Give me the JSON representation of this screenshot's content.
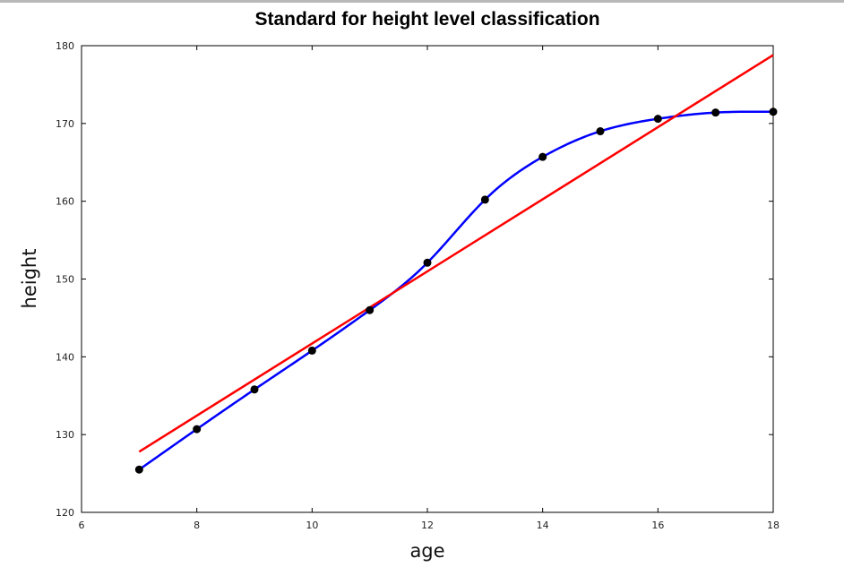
{
  "chart_data": {
    "type": "line",
    "title": "Standard for height level classification",
    "xlabel": "age",
    "ylabel": "height",
    "xlim": [
      6,
      18
    ],
    "ylim": [
      120,
      180
    ],
    "xticks": [
      6,
      8,
      10,
      12,
      14,
      16,
      18
    ],
    "yticks": [
      120,
      130,
      140,
      150,
      160,
      170,
      180
    ],
    "grid": false,
    "series": [
      {
        "kind": "points",
        "color": "#000000",
        "x": [
          7,
          8,
          9,
          10,
          11,
          12,
          13,
          14,
          15,
          16,
          17,
          18
        ],
        "y": [
          125.5,
          130.7,
          135.8,
          140.8,
          146.0,
          152.1,
          160.2,
          165.7,
          169.0,
          170.6,
          171.4,
          171.5
        ]
      },
      {
        "kind": "spline",
        "color": "#0000ff",
        "x": [
          7,
          8,
          9,
          10,
          11,
          12,
          13,
          14,
          15,
          16,
          17,
          18
        ],
        "y": [
          125.5,
          130.7,
          135.8,
          140.8,
          146.0,
          152.1,
          160.2,
          165.7,
          169.0,
          170.6,
          171.4,
          171.5
        ]
      },
      {
        "kind": "linear-fit",
        "color": "#ff0000",
        "x": [
          7,
          18
        ],
        "y": [
          127.8,
          178.8
        ]
      }
    ]
  }
}
